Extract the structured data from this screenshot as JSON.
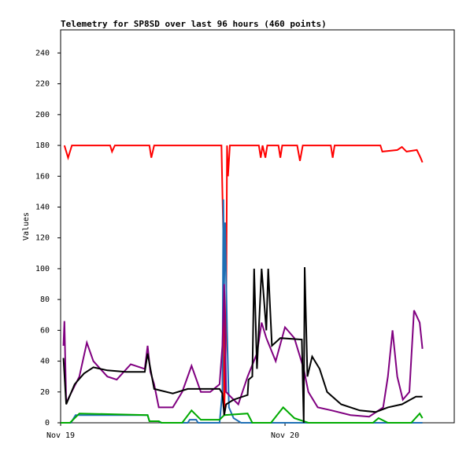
{
  "chart_data": {
    "type": "line",
    "title": "Telemetry for SP8SD over last 96 hours (460 points)",
    "y_label": "Values",
    "xlim": [
      0,
      42.1
    ],
    "ylim": [
      0,
      255
    ],
    "xticks": [
      {
        "value": 0,
        "label": "Nov 19"
      },
      {
        "value": 24,
        "label": "Nov 20"
      }
    ],
    "yticks": [
      0,
      20,
      40,
      60,
      80,
      100,
      120,
      140,
      160,
      180,
      200,
      220,
      240
    ],
    "series": [
      {
        "color": "#ff0000",
        "x": [
          0.4,
          0.8,
          1.2,
          5.3,
          5.5,
          5.8,
          9.5,
          9.7,
          10,
          17.2,
          17.4,
          17.5,
          17.7,
          17.8,
          17.9,
          18.1,
          21.2,
          21.4,
          21.6,
          21.9,
          22.1,
          23.3,
          23.5,
          23.7,
          25.3,
          25.6,
          25.9,
          28.9,
          29.1,
          29.3,
          34.2,
          34.4,
          36,
          36.5,
          37,
          38.1,
          38.5,
          38.7
        ],
        "values": [
          180,
          172,
          180,
          180,
          176,
          180,
          180,
          172,
          180,
          180,
          120,
          5,
          60,
          180,
          160,
          180,
          180,
          172,
          180,
          172,
          180,
          180,
          172,
          180,
          180,
          170,
          180,
          180,
          172,
          180,
          180,
          176,
          177,
          179,
          176,
          177,
          172,
          169
        ]
      },
      {
        "color": "#1f6fb4",
        "x": [
          0,
          1.1,
          1.6,
          9.3,
          9.5,
          10.5,
          10.7,
          13.6,
          13.8,
          14.5,
          14.7,
          17.0,
          17.3,
          17.4,
          17.5,
          17.6,
          17.8,
          18.0,
          18.5,
          19.3,
          38.7
        ],
        "values": [
          0,
          0,
          5,
          5,
          1,
          1,
          0,
          0,
          2,
          2,
          0,
          0,
          20,
          145,
          90,
          130,
          60,
          10,
          3,
          0,
          0
        ]
      },
      {
        "color": "#00aa00",
        "x": [
          0,
          1,
          2,
          9.3,
          9.5,
          10.5,
          10.8,
          13,
          14,
          15,
          17,
          17.5,
          20,
          20.5,
          22.5,
          23.8,
          25,
          26.5,
          33.4,
          34,
          35,
          37.5,
          38.4,
          38.7
        ],
        "values": [
          0,
          0,
          6,
          5,
          1,
          1,
          0,
          0,
          8,
          2,
          2,
          5,
          6,
          0,
          0,
          10,
          3,
          0,
          0,
          3,
          0,
          0,
          6,
          3
        ]
      },
      {
        "color": "#800080",
        "x": [
          0.3,
          0.4,
          0.6,
          2,
          2.8,
          3.5,
          5,
          6,
          7.5,
          9,
          9.3,
          9.6,
          10,
          10.5,
          12,
          13,
          14,
          15,
          16,
          17,
          17.3,
          17.5,
          17.7,
          18.5,
          19,
          20,
          21,
          21.5,
          22,
          23,
          24,
          25,
          26,
          26.5,
          27.5,
          29,
          31,
          33,
          34.5,
          35,
          35.5,
          36,
          36.6,
          37.3,
          37.8,
          38.4,
          38.7
        ],
        "values": [
          50,
          66,
          13,
          30,
          52,
          40,
          30,
          28,
          38,
          35,
          50,
          33,
          25,
          10,
          10,
          20,
          37,
          20,
          20,
          25,
          50,
          90,
          20,
          15,
          12,
          30,
          45,
          65,
          55,
          40,
          62,
          55,
          35,
          20,
          10,
          8,
          5,
          4,
          10,
          30,
          60,
          30,
          15,
          20,
          73,
          65,
          48
        ]
      },
      {
        "color": "#000000",
        "x": [
          0.3,
          0.6,
          1.5,
          2.5,
          3.5,
          5,
          7,
          9,
          9.3,
          10,
          12,
          13.6,
          17,
          17.3,
          17.5,
          17.7,
          18.5,
          20,
          20.1,
          20.5,
          20.7,
          21,
          21.5,
          22,
          22.2,
          22.6,
          23.5,
          25.8,
          26,
          26.1,
          26.4,
          26.9,
          27.7,
          28.5,
          30,
          32,
          33.7,
          35,
          36.5,
          38,
          38.7
        ],
        "values": [
          42,
          12,
          25,
          32,
          36,
          34,
          33,
          33,
          45,
          22,
          19,
          22,
          22,
          19,
          5,
          12,
          15,
          18,
          28,
          30,
          100,
          35,
          100,
          60,
          100,
          50,
          55,
          54,
          0,
          101,
          30,
          43,
          35,
          20,
          12,
          8,
          7,
          10,
          12,
          17,
          17
        ]
      }
    ]
  }
}
